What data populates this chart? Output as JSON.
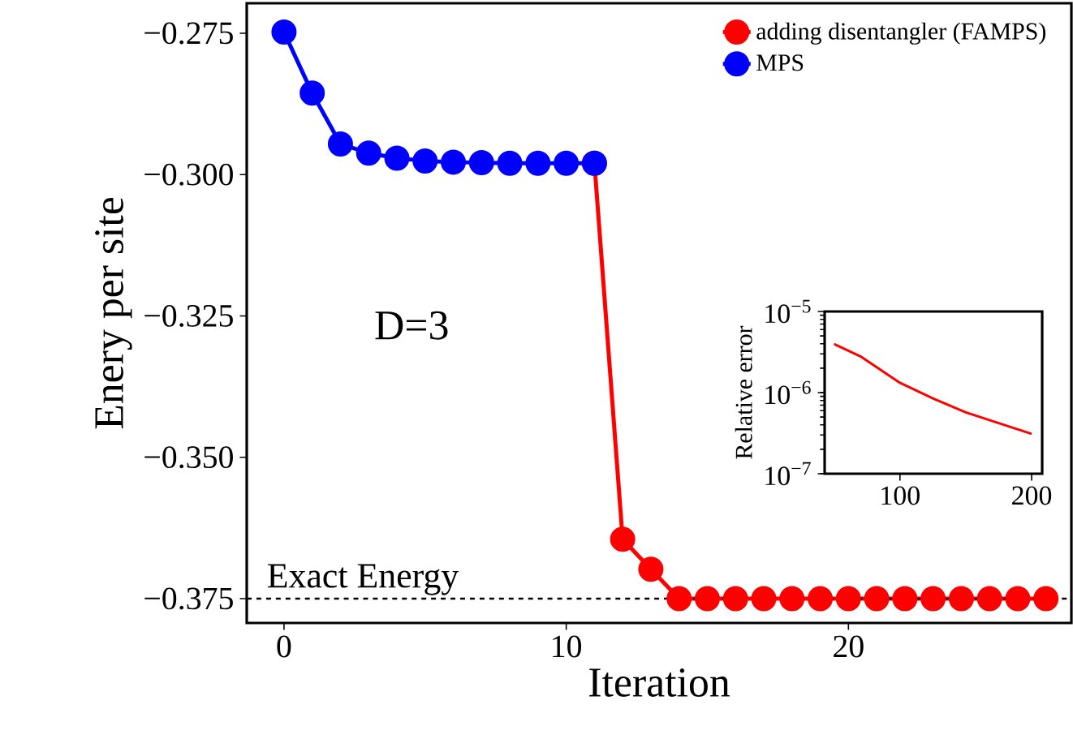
{
  "chart_data": [
    {
      "type": "line",
      "xlabel": "Iteration",
      "ylabel": "Enery per site",
      "xlim": [
        -1.32,
        27.9
      ],
      "ylim": [
        -0.3793,
        -0.2697
      ],
      "xticks": [
        0,
        10,
        20
      ],
      "yticks": [
        {
          "value": -0.275,
          "label": "−0.275"
        },
        {
          "value": -0.3,
          "label": "−0.300"
        },
        {
          "value": -0.325,
          "label": "−0.325"
        },
        {
          "value": -0.35,
          "label": "−0.350"
        },
        {
          "value": -0.375,
          "label": "−0.375"
        }
      ],
      "marker": "circle",
      "line_style": "solid",
      "legend": "top right",
      "grid": false,
      "series": [
        {
          "name": "adding disentangler (FAMPS)",
          "color": "#ff0000",
          "x": [
            11,
            12,
            13,
            14,
            15,
            16,
            17,
            18,
            19,
            20,
            21,
            22,
            23,
            24,
            25,
            26,
            27
          ],
          "values": [
            -0.298,
            -0.3645,
            -0.3698,
            -0.375,
            -0.375,
            -0.375,
            -0.375,
            -0.375,
            -0.375,
            -0.375,
            -0.375,
            -0.375,
            -0.375,
            -0.375,
            -0.375,
            -0.375,
            -0.375
          ]
        },
        {
          "name": "MPS",
          "color": "#0000ff",
          "x": [
            0,
            1,
            2,
            3,
            4,
            5,
            6,
            7,
            8,
            9,
            10,
            11
          ],
          "values": [
            -0.2748,
            -0.2856,
            -0.2946,
            -0.2962,
            -0.2971,
            -0.2976,
            -0.2978,
            -0.2979,
            -0.298,
            -0.298,
            -0.298,
            -0.298
          ]
        }
      ],
      "ref_lines": [
        {
          "axis": "y",
          "value": -0.375,
          "label": "Exact Energy",
          "color": "#000000",
          "line_style": "dashed"
        }
      ],
      "annotations": [
        "D=3"
      ]
    },
    {
      "type": "line",
      "ylabel": "Relative error",
      "log": "y",
      "xlim": [
        42.8,
        208
      ],
      "ylim": [
        1e-07,
        1e-05
      ],
      "xticks": [
        100,
        200
      ],
      "yticks": [
        {
          "value": 1e-07,
          "label": "10$^{−7}$"
        },
        {
          "value": 1e-06,
          "label": "10$^{−6}$"
        },
        {
          "value": 1e-05,
          "label": "10$^{−5}$"
        }
      ],
      "marker": "none",
      "grid": false,
      "series": [
        {
          "color": "#ff0000",
          "x": [
            50,
            70,
            100,
            125,
            150,
            175,
            200
          ],
          "values": [
            3.98e-06,
            2.8e-06,
            1.32e-06,
            8.5e-07,
            5.7e-07,
            4.2e-07,
            3.1e-07
          ]
        }
      ]
    }
  ]
}
